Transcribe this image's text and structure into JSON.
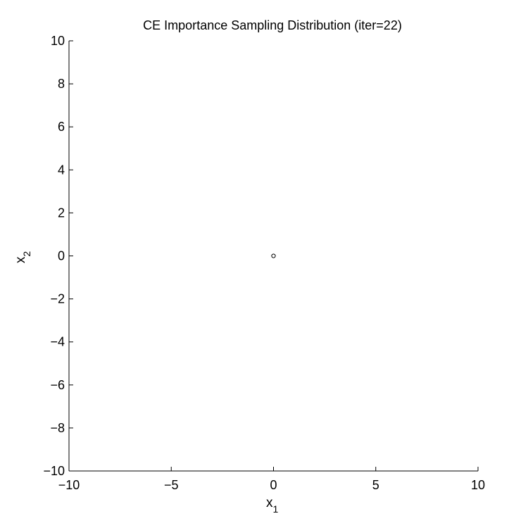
{
  "chart_data": {
    "type": "scatter",
    "title": "CE Importance Sampling Distribution (iter=22)",
    "xlabel": {
      "base": "x",
      "subscript": "1"
    },
    "ylabel": {
      "base": "x",
      "subscript": "2"
    },
    "xlim": [
      -10,
      10
    ],
    "ylim": [
      -10,
      10
    ],
    "xticks": [
      -10,
      -5,
      0,
      5,
      10
    ],
    "xtick_labels": [
      "−10",
      "−5",
      "0",
      "5",
      "10"
    ],
    "yticks": [
      -10,
      -8,
      -6,
      -4,
      -2,
      0,
      2,
      4,
      6,
      8,
      10
    ],
    "ytick_labels": [
      "−10",
      "−8",
      "−6",
      "−4",
      "−2",
      "0",
      "2",
      "4",
      "6",
      "8",
      "10"
    ],
    "grid": false,
    "marker": "open-circle",
    "colors": {
      "axis": "#000000",
      "marker": "#000000",
      "background": "#ffffff"
    },
    "points": [
      {
        "x": 0,
        "y": 0
      }
    ]
  }
}
